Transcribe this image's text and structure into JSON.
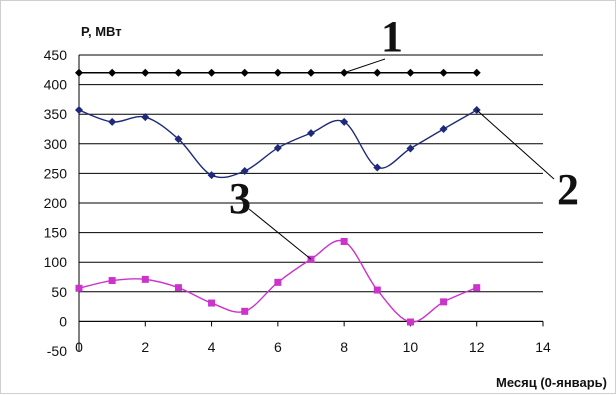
{
  "chart_data": {
    "type": "line",
    "title": "",
    "ylabel": "P, МВт",
    "xlabel": "Месяц (0-январь)",
    "xlim": [
      0,
      14
    ],
    "ylim": [
      -50,
      450
    ],
    "x_ticks": [
      "0",
      "2",
      "4",
      "6",
      "8",
      "10",
      "12",
      "14"
    ],
    "y_ticks": [
      "-50",
      "0",
      "50",
      "100",
      "150",
      "200",
      "250",
      "300",
      "350",
      "400",
      "450"
    ],
    "grid": "horizontal",
    "series": [
      {
        "label": "1",
        "color": "#000000",
        "marker": "diamond",
        "smooth": false,
        "x": [
          0,
          1,
          2,
          3,
          4,
          5,
          6,
          7,
          8,
          9,
          10,
          11,
          12
        ],
        "values": [
          420,
          420,
          420,
          420,
          420,
          420,
          420,
          420,
          420,
          420,
          420,
          420,
          420
        ]
      },
      {
        "label": "2",
        "color": "#1f2a7a",
        "marker": "diamond",
        "smooth": true,
        "x": [
          0,
          1,
          2,
          3,
          4,
          5,
          6,
          7,
          8,
          9,
          10,
          11,
          12
        ],
        "values": [
          357,
          337,
          345,
          308,
          247,
          254,
          293,
          318,
          337,
          260,
          292,
          325,
          357
        ]
      },
      {
        "label": "3",
        "color": "#cc33cc",
        "marker": "square",
        "smooth": true,
        "x": [
          0,
          1,
          2,
          3,
          4,
          5,
          6,
          7,
          8,
          9,
          10,
          11,
          12
        ],
        "values": [
          56,
          69,
          71,
          57,
          31,
          17,
          66,
          105,
          135,
          53,
          -1,
          33,
          57
        ]
      }
    ]
  }
}
